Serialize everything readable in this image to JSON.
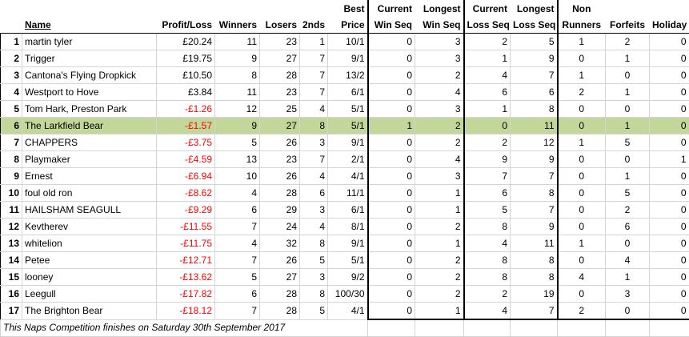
{
  "headers": {
    "name": "Name",
    "profit_loss": "Profit/Loss",
    "winners": "Winners",
    "losers": "Losers",
    "seconds": "2nds",
    "best_price_top": "Best",
    "best_price_bottom": "Price",
    "current_win_top": "Current",
    "current_win_bottom": "Win Seq",
    "longest_win_top": "Longest",
    "longest_win_bottom": "Win Seq",
    "current_loss_top": "Current",
    "current_loss_bottom": "Loss Seq",
    "longest_loss_top": "Longest",
    "longest_loss_bottom": "Loss Seq",
    "non_runners_top": "Non",
    "non_runners_bottom": "Runners",
    "forfeits": "Forfeits",
    "holiday": "Holiday"
  },
  "rows": [
    {
      "rank": "1",
      "name": "martin tyler",
      "pl": "£20.24",
      "winners": "11",
      "losers": "23",
      "seconds": "1",
      "best": "10/1",
      "cws": "0",
      "lws": "3",
      "cls": "2",
      "lls": "5",
      "nr": "1",
      "forfeits": "2",
      "holiday": "0"
    },
    {
      "rank": "2",
      "name": "Trigger",
      "pl": "£19.75",
      "winners": "9",
      "losers": "27",
      "seconds": "7",
      "best": "9/1",
      "cws": "0",
      "lws": "3",
      "cls": "1",
      "lls": "9",
      "nr": "0",
      "forfeits": "1",
      "holiday": "0"
    },
    {
      "rank": "3",
      "name": "Cantona's Flying Dropkick",
      "pl": "£10.50",
      "winners": "8",
      "losers": "28",
      "seconds": "7",
      "best": "13/2",
      "cws": "0",
      "lws": "2",
      "cls": "4",
      "lls": "7",
      "nr": "1",
      "forfeits": "0",
      "holiday": "0"
    },
    {
      "rank": "4",
      "name": "Westport to Hove",
      "pl": "£3.84",
      "winners": "11",
      "losers": "23",
      "seconds": "7",
      "best": "6/1",
      "cws": "0",
      "lws": "4",
      "cls": "6",
      "lls": "6",
      "nr": "2",
      "forfeits": "1",
      "holiday": "0"
    },
    {
      "rank": "5",
      "name": "Tom Hark, Preston Park",
      "pl": "-£1.26",
      "winners": "12",
      "losers": "25",
      "seconds": "4",
      "best": "5/1",
      "cws": "0",
      "lws": "3",
      "cls": "1",
      "lls": "8",
      "nr": "0",
      "forfeits": "0",
      "holiday": "0"
    },
    {
      "rank": "6",
      "name": "The Larkfield Bear",
      "pl": "-£1.57",
      "winners": "9",
      "losers": "27",
      "seconds": "8",
      "best": "5/1",
      "cws": "1",
      "lws": "2",
      "cls": "0",
      "lls": "11",
      "nr": "0",
      "forfeits": "1",
      "holiday": "0",
      "highlight": true
    },
    {
      "rank": "7",
      "name": "CHAPPERS",
      "pl": "-£3.75",
      "winners": "5",
      "losers": "26",
      "seconds": "3",
      "best": "9/1",
      "cws": "0",
      "lws": "2",
      "cls": "2",
      "lls": "12",
      "nr": "1",
      "forfeits": "5",
      "holiday": "0"
    },
    {
      "rank": "8",
      "name": "Playmaker",
      "pl": "-£4.59",
      "winners": "13",
      "losers": "23",
      "seconds": "7",
      "best": "2/1",
      "cws": "0",
      "lws": "4",
      "cls": "9",
      "lls": "9",
      "nr": "0",
      "forfeits": "0",
      "holiday": "1"
    },
    {
      "rank": "9",
      "name": "Ernest",
      "pl": "-£6.94",
      "winners": "10",
      "losers": "26",
      "seconds": "4",
      "best": "4/1",
      "cws": "0",
      "lws": "3",
      "cls": "7",
      "lls": "7",
      "nr": "0",
      "forfeits": "1",
      "holiday": "0"
    },
    {
      "rank": "10",
      "name": "foul old ron",
      "pl": "-£8.62",
      "winners": "4",
      "losers": "28",
      "seconds": "6",
      "best": "11/1",
      "cws": "0",
      "lws": "1",
      "cls": "6",
      "lls": "8",
      "nr": "0",
      "forfeits": "5",
      "holiday": "0"
    },
    {
      "rank": "11",
      "name": "HAILSHAM SEAGULL",
      "pl": "-£9.29",
      "winners": "6",
      "losers": "29",
      "seconds": "3",
      "best": "6/1",
      "cws": "0",
      "lws": "1",
      "cls": "5",
      "lls": "7",
      "nr": "0",
      "forfeits": "2",
      "holiday": "0"
    },
    {
      "rank": "12",
      "name": "Kevtherev",
      "pl": "-£11.55",
      "winners": "7",
      "losers": "24",
      "seconds": "4",
      "best": "8/1",
      "cws": "0",
      "lws": "2",
      "cls": "8",
      "lls": "9",
      "nr": "0",
      "forfeits": "6",
      "holiday": "0"
    },
    {
      "rank": "13",
      "name": "whitelion",
      "pl": "-£11.75",
      "winners": "4",
      "losers": "32",
      "seconds": "8",
      "best": "9/1",
      "cws": "0",
      "lws": "1",
      "cls": "4",
      "lls": "11",
      "nr": "1",
      "forfeits": "0",
      "holiday": "0"
    },
    {
      "rank": "14",
      "name": "Petee",
      "pl": "-£12.71",
      "winners": "7",
      "losers": "26",
      "seconds": "5",
      "best": "5/1",
      "cws": "0",
      "lws": "2",
      "cls": "8",
      "lls": "8",
      "nr": "0",
      "forfeits": "4",
      "holiday": "0"
    },
    {
      "rank": "15",
      "name": "looney",
      "pl": "-£13.62",
      "winners": "5",
      "losers": "27",
      "seconds": "3",
      "best": "9/2",
      "cws": "0",
      "lws": "2",
      "cls": "8",
      "lls": "8",
      "nr": "4",
      "forfeits": "1",
      "holiday": "0"
    },
    {
      "rank": "16",
      "name": "Leegull",
      "pl": "-£17.82",
      "winners": "6",
      "losers": "28",
      "seconds": "8",
      "best": "100/30",
      "cws": "0",
      "lws": "2",
      "cls": "2",
      "lls": "19",
      "nr": "0",
      "forfeits": "3",
      "holiday": "0"
    },
    {
      "rank": "17",
      "name": "The Brighton Bear",
      "pl": "-£18.12",
      "winners": "7",
      "losers": "28",
      "seconds": "5",
      "best": "4/1",
      "cws": "0",
      "lws": "1",
      "cls": "4",
      "lls": "7",
      "nr": "2",
      "forfeits": "0",
      "holiday": "0"
    }
  ],
  "footer_note": "This Naps Competition finishes on Saturday 30th September 2017",
  "colors": {
    "highlight_row": "#c4d79b",
    "negative": "#ff0000"
  }
}
